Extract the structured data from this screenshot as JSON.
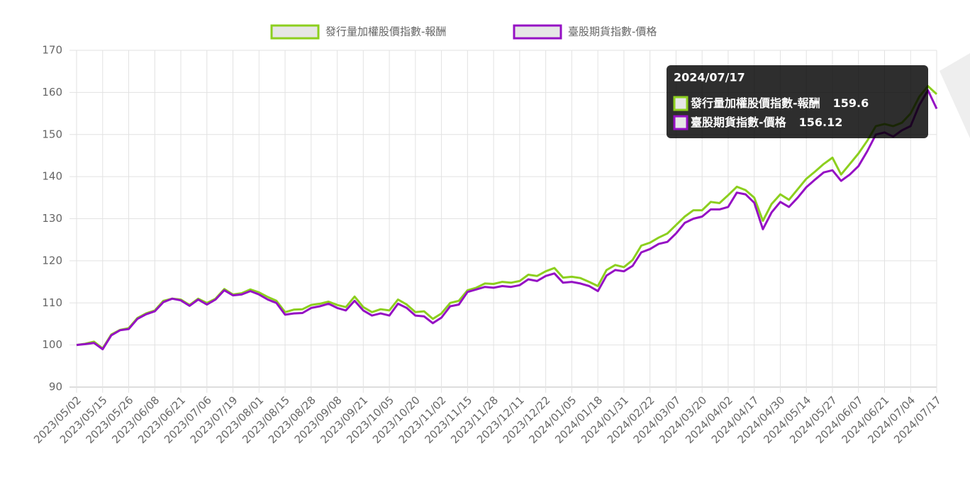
{
  "chart_data": {
    "type": "line",
    "categories": [
      "2023/05/02",
      null,
      null,
      "2023/05/15",
      null,
      null,
      "2023/05/26",
      null,
      null,
      "2023/06/08",
      null,
      null,
      "2023/06/21",
      null,
      null,
      "2023/07/06",
      null,
      null,
      "2023/07/19",
      null,
      null,
      "2023/08/01",
      null,
      null,
      "2023/08/15",
      null,
      null,
      "2023/08/28",
      null,
      null,
      "2023/09/08",
      null,
      null,
      "2023/09/21",
      null,
      null,
      "2023/10/05",
      null,
      null,
      "2023/10/20",
      null,
      null,
      "2023/11/02",
      null,
      null,
      "2023/11/15",
      null,
      null,
      "2023/11/28",
      null,
      null,
      "2023/12/11",
      null,
      null,
      "2023/12/22",
      null,
      null,
      "2024/01/05",
      null,
      null,
      "2024/01/18",
      null,
      null,
      "2024/01/31",
      null,
      null,
      "2024/02/22",
      null,
      null,
      "2024/03/07",
      null,
      null,
      "2024/03/20",
      null,
      null,
      "2024/04/02",
      null,
      null,
      "2024/04/17",
      null,
      null,
      "2024/04/30",
      null,
      null,
      "2024/05/14",
      null,
      null,
      "2024/05/27",
      null,
      null,
      "2024/06/07",
      null,
      null,
      "2024/06/21",
      null,
      null,
      "2024/07/04",
      null,
      null,
      "2024/07/17"
    ],
    "series": [
      {
        "name": "發行量加權股價指數-報酬",
        "color": "#8ccf1e",
        "values": [
          100,
          100.3,
          100.8,
          99.2,
          102.5,
          103.6,
          104,
          106.4,
          107.5,
          108.2,
          110.5,
          111,
          110.8,
          109.5,
          111,
          110,
          111,
          113.3,
          112,
          112.3,
          113.2,
          112.5,
          111.4,
          110.5,
          107.8,
          108.4,
          108.5,
          109.5,
          109.8,
          110.3,
          109.5,
          109,
          111.5,
          109,
          107.8,
          108.5,
          108.2,
          110.8,
          109.6,
          107.8,
          108,
          106.2,
          107.5,
          110,
          110.5,
          113,
          113.6,
          114.6,
          114.5,
          115,
          114.8,
          115.2,
          116.7,
          116.4,
          117.5,
          118.3,
          116,
          116.2,
          115.9,
          115,
          114,
          117.8,
          119,
          118.5,
          120.2,
          123.6,
          124.3,
          125.5,
          126.5,
          128.5,
          130.5,
          132,
          132,
          134,
          133.7,
          135.6,
          137.6,
          136.8,
          135,
          129.5,
          133.5,
          135.8,
          134.5,
          137,
          139.5,
          141.2,
          143,
          144.5,
          140.5,
          143,
          145.5,
          148.5,
          152,
          152.5,
          152,
          152.8,
          155,
          159,
          161.5,
          159.6
        ]
      },
      {
        "name": "臺股期貨指數-價格",
        "color": "#9510c4",
        "values": [
          100,
          100.2,
          100.5,
          99,
          102.3,
          103.5,
          103.8,
          106.2,
          107.3,
          108,
          110.2,
          111,
          110.6,
          109.3,
          110.8,
          109.6,
          110.8,
          113,
          111.8,
          112,
          112.8,
          112,
          110.8,
          110,
          107.2,
          107.5,
          107.6,
          108.8,
          109.2,
          109.8,
          108.8,
          108.2,
          110.5,
          108.2,
          107,
          107.5,
          107,
          109.8,
          108.8,
          107,
          106.8,
          105.2,
          106.5,
          109.2,
          109.6,
          112.6,
          113.2,
          113.8,
          113.6,
          114,
          113.8,
          114.2,
          115.6,
          115.2,
          116.4,
          117,
          114.8,
          115,
          114.6,
          114,
          112.8,
          116.5,
          117.8,
          117.5,
          118.8,
          122,
          122.8,
          124,
          124.5,
          126.5,
          129,
          130,
          130.5,
          132.2,
          132.2,
          132.8,
          136.2,
          135.8,
          133.8,
          127.5,
          131.5,
          134,
          132.8,
          135,
          137.5,
          139.3,
          141,
          141.5,
          139,
          140.5,
          142.5,
          146,
          150,
          150.5,
          149.5,
          151,
          152,
          157,
          160.5,
          156.12
        ]
      }
    ],
    "ylim": [
      90,
      170
    ],
    "yticks": [
      90,
      100,
      110,
      120,
      130,
      140,
      150,
      160,
      170
    ],
    "grid": true,
    "legend": "top"
  }
}
